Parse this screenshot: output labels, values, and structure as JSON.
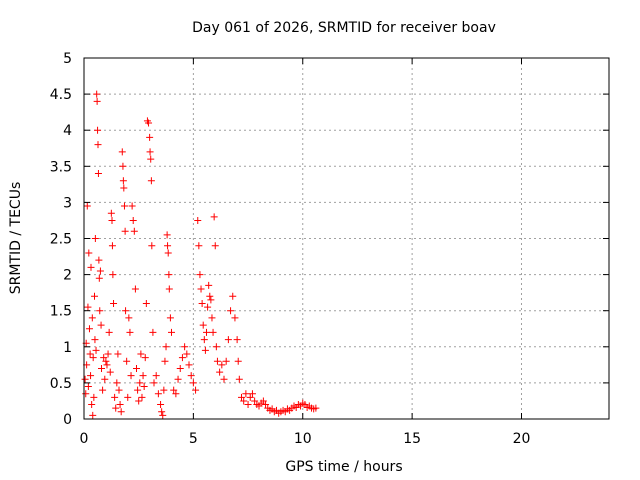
{
  "chart_data": {
    "type": "scatter",
    "title": "Day 061 of 2026, SRMTID for receiver boav",
    "xlabel": "GPS time / hours",
    "ylabel": "SRMTID / TECUs",
    "xlim": [
      0,
      24
    ],
    "ylim": [
      0,
      5
    ],
    "xticks": [
      0,
      5,
      10,
      15,
      20
    ],
    "xtick_labels": [
      "0",
      "5",
      "10",
      "15",
      "20"
    ],
    "yticks": [
      0,
      0.5,
      1,
      1.5,
      2,
      2.5,
      3,
      3.5,
      4,
      4.5,
      5
    ],
    "ytick_labels": [
      "0",
      "0.5",
      "1",
      "1.5",
      "2",
      "2.5",
      "3",
      "3.5",
      "4",
      "4.5",
      "5"
    ],
    "grid": true,
    "marker": "+",
    "color": "#ff0000",
    "series": [
      {
        "name": "SRMTID",
        "points": [
          [
            0.05,
            0.55
          ],
          [
            0.08,
            0.35
          ],
          [
            0.1,
            1.05
          ],
          [
            0.12,
            0.75
          ],
          [
            0.15,
            2.95
          ],
          [
            0.18,
            1.55
          ],
          [
            0.2,
            0.45
          ],
          [
            0.22,
            2.3
          ],
          [
            0.25,
            1.25
          ],
          [
            0.28,
            0.9
          ],
          [
            0.3,
            0.6
          ],
          [
            0.32,
            2.1
          ],
          [
            0.35,
            0.2
          ],
          [
            0.38,
            1.4
          ],
          [
            0.4,
            0.05
          ],
          [
            0.42,
            0.85
          ],
          [
            0.45,
            0.3
          ],
          [
            0.48,
            1.7
          ],
          [
            0.5,
            1.1
          ],
          [
            0.52,
            2.5
          ],
          [
            0.55,
            0.95
          ],
          [
            0.58,
            4.5
          ],
          [
            0.6,
            4.4
          ],
          [
            0.62,
            4.0
          ],
          [
            0.64,
            3.8
          ],
          [
            0.66,
            3.4
          ],
          [
            0.68,
            2.2
          ],
          [
            0.7,
            1.95
          ],
          [
            0.72,
            1.5
          ],
          [
            0.75,
            2.05
          ],
          [
            0.78,
            1.3
          ],
          [
            0.8,
            0.7
          ],
          [
            0.85,
            0.4
          ],
          [
            0.9,
            0.85
          ],
          [
            0.95,
            0.55
          ],
          [
            1.0,
            0.8
          ],
          [
            1.05,
            0.75
          ],
          [
            1.1,
            0.9
          ],
          [
            1.15,
            1.2
          ],
          [
            1.2,
            0.65
          ],
          [
            1.25,
            2.85
          ],
          [
            1.28,
            2.75
          ],
          [
            1.3,
            2.4
          ],
          [
            1.32,
            2.0
          ],
          [
            1.35,
            1.6
          ],
          [
            1.4,
            0.3
          ],
          [
            1.45,
            0.15
          ],
          [
            1.5,
            0.5
          ],
          [
            1.55,
            0.9
          ],
          [
            1.6,
            0.4
          ],
          [
            1.65,
            0.2
          ],
          [
            1.7,
            0.1
          ],
          [
            1.75,
            3.7
          ],
          [
            1.78,
            3.5
          ],
          [
            1.8,
            3.3
          ],
          [
            1.82,
            3.2
          ],
          [
            1.85,
            2.95
          ],
          [
            1.88,
            2.6
          ],
          [
            1.9,
            1.5
          ],
          [
            1.95,
            0.8
          ],
          [
            2.0,
            0.3
          ],
          [
            2.05,
            1.4
          ],
          [
            2.1,
            1.2
          ],
          [
            2.15,
            0.6
          ],
          [
            2.2,
            2.95
          ],
          [
            2.25,
            2.75
          ],
          [
            2.3,
            2.6
          ],
          [
            2.35,
            1.8
          ],
          [
            2.4,
            0.7
          ],
          [
            2.45,
            0.4
          ],
          [
            2.5,
            0.25
          ],
          [
            2.55,
            0.5
          ],
          [
            2.6,
            0.9
          ],
          [
            2.65,
            0.3
          ],
          [
            2.7,
            0.6
          ],
          [
            2.75,
            0.45
          ],
          [
            2.8,
            0.85
          ],
          [
            2.85,
            1.6
          ],
          [
            2.9,
            4.13
          ],
          [
            2.95,
            4.1
          ],
          [
            3.0,
            3.9
          ],
          [
            3.02,
            3.7
          ],
          [
            3.05,
            3.6
          ],
          [
            3.08,
            3.3
          ],
          [
            3.1,
            2.4
          ],
          [
            3.15,
            1.2
          ],
          [
            3.2,
            0.5
          ],
          [
            3.3,
            0.6
          ],
          [
            3.4,
            0.35
          ],
          [
            3.5,
            0.2
          ],
          [
            3.55,
            0.1
          ],
          [
            3.6,
            0.05
          ],
          [
            3.65,
            0.4
          ],
          [
            3.7,
            0.8
          ],
          [
            3.75,
            1.0
          ],
          [
            3.8,
            2.55
          ],
          [
            3.82,
            2.4
          ],
          [
            3.85,
            2.3
          ],
          [
            3.88,
            2.0
          ],
          [
            3.9,
            1.8
          ],
          [
            3.95,
            1.4
          ],
          [
            4.0,
            1.2
          ],
          [
            4.1,
            0.4
          ],
          [
            4.2,
            0.35
          ],
          [
            4.3,
            0.55
          ],
          [
            4.4,
            0.7
          ],
          [
            4.5,
            0.85
          ],
          [
            4.6,
            1.0
          ],
          [
            4.7,
            0.9
          ],
          [
            4.8,
            0.75
          ],
          [
            4.9,
            0.6
          ],
          [
            5.0,
            0.5
          ],
          [
            5.1,
            0.4
          ],
          [
            5.2,
            2.75
          ],
          [
            5.25,
            2.4
          ],
          [
            5.3,
            2.0
          ],
          [
            5.35,
            1.8
          ],
          [
            5.4,
            1.6
          ],
          [
            5.45,
            1.3
          ],
          [
            5.5,
            1.1
          ],
          [
            5.55,
            0.95
          ],
          [
            5.6,
            1.2
          ],
          [
            5.65,
            1.55
          ],
          [
            5.7,
            1.85
          ],
          [
            5.75,
            1.7
          ],
          [
            5.8,
            1.65
          ],
          [
            5.85,
            1.4
          ],
          [
            5.9,
            1.2
          ],
          [
            5.95,
            2.8
          ],
          [
            6.0,
            2.4
          ],
          [
            6.05,
            1.0
          ],
          [
            6.1,
            0.8
          ],
          [
            6.2,
            0.65
          ],
          [
            6.3,
            0.75
          ],
          [
            6.4,
            0.55
          ],
          [
            6.5,
            0.8
          ],
          [
            6.6,
            1.1
          ],
          [
            6.7,
            1.5
          ],
          [
            6.8,
            1.7
          ],
          [
            6.9,
            1.4
          ],
          [
            7.0,
            1.1
          ],
          [
            7.05,
            0.8
          ],
          [
            7.1,
            0.55
          ],
          [
            7.2,
            0.3
          ],
          [
            7.3,
            0.25
          ],
          [
            7.4,
            0.35
          ],
          [
            7.5,
            0.2
          ],
          [
            7.6,
            0.3
          ],
          [
            7.7,
            0.35
          ],
          [
            7.8,
            0.25
          ],
          [
            7.9,
            0.2
          ],
          [
            8.0,
            0.18
          ],
          [
            8.1,
            0.22
          ],
          [
            8.2,
            0.25
          ],
          [
            8.3,
            0.2
          ],
          [
            8.4,
            0.15
          ],
          [
            8.5,
            0.12
          ],
          [
            8.6,
            0.14
          ],
          [
            8.7,
            0.1
          ],
          [
            8.8,
            0.12
          ],
          [
            8.9,
            0.08
          ],
          [
            9.0,
            0.1
          ],
          [
            9.1,
            0.12
          ],
          [
            9.2,
            0.1
          ],
          [
            9.3,
            0.14
          ],
          [
            9.4,
            0.12
          ],
          [
            9.5,
            0.15
          ],
          [
            9.6,
            0.18
          ],
          [
            9.7,
            0.16
          ],
          [
            9.8,
            0.2
          ],
          [
            9.9,
            0.18
          ],
          [
            10.0,
            0.22
          ],
          [
            10.1,
            0.2
          ],
          [
            10.2,
            0.16
          ],
          [
            10.3,
            0.18
          ],
          [
            10.4,
            0.15
          ],
          [
            10.5,
            0.14
          ],
          [
            10.6,
            0.15
          ]
        ]
      }
    ]
  }
}
